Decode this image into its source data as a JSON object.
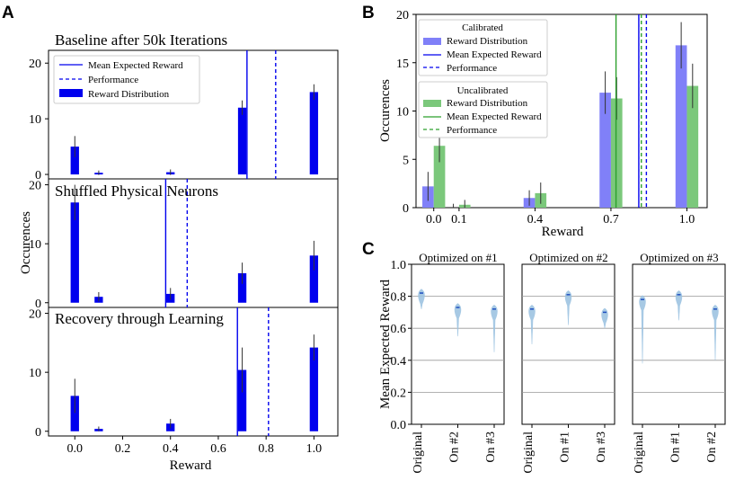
{
  "colors": {
    "blue": "#0000ee",
    "blue_light": "#8080f8",
    "green_light": "#7bc87b",
    "green": "#2ca02c",
    "violin": "#9ec4e2",
    "mean": "#1f4fbf"
  },
  "panels": {
    "A": "A",
    "B": "B",
    "C": "C"
  },
  "chart_data": [
    {
      "id": "A1",
      "type": "bar",
      "title": "Baseline after 50k Iterations",
      "x": [
        0.0,
        0.1,
        0.4,
        0.7,
        1.0
      ],
      "values": [
        5.0,
        0.3,
        0.4,
        12.0,
        14.8
      ],
      "errors": [
        1.9,
        0.4,
        0.5,
        1.3,
        1.4
      ],
      "mean_expected_reward": 0.72,
      "performance": 0.84,
      "xlim": [
        -0.11,
        1.1
      ],
      "ylim": [
        -0.8,
        22.3
      ],
      "yticks": [
        0,
        10,
        20
      ],
      "legend": [
        "Mean Expected Reward",
        "Performance",
        "Reward Distribution"
      ]
    },
    {
      "id": "A2",
      "type": "bar",
      "title": "Shuffled Physical Neurons",
      "x": [
        0.0,
        0.1,
        0.4,
        0.7,
        1.0
      ],
      "values": [
        17.0,
        1.0,
        1.5,
        5.0,
        8.0
      ],
      "errors": [
        3.0,
        0.8,
        1.0,
        1.8,
        2.5
      ],
      "mean_expected_reward": 0.38,
      "performance": 0.47,
      "xlim": [
        -0.11,
        1.1
      ],
      "ylim": [
        -0.8,
        21.0
      ],
      "yticks": [
        0,
        10,
        20
      ]
    },
    {
      "id": "A3",
      "type": "bar",
      "title": "Recovery through Learning",
      "x": [
        0.0,
        0.1,
        0.4,
        0.7,
        1.0
      ],
      "values": [
        6.0,
        0.4,
        1.3,
        10.4,
        14.2
      ],
      "errors": [
        2.9,
        0.4,
        0.8,
        3.8,
        2.2
      ],
      "mean_expected_reward": 0.68,
      "performance": 0.81,
      "xlim": [
        -0.11,
        1.1
      ],
      "ylim": [
        -0.8,
        21.0
      ],
      "yticks": [
        0,
        10,
        20
      ],
      "xticks": [
        "0.0",
        "0.2",
        "0.4",
        "0.6",
        "0.8",
        "1.0"
      ],
      "xlabel": "Reward"
    },
    {
      "id": "B",
      "type": "bar",
      "title": "",
      "categories": [
        "0.0",
        "0.1",
        "0.4",
        "0.7",
        "1.0"
      ],
      "x": [
        0.0,
        0.1,
        0.4,
        0.7,
        1.0
      ],
      "series": [
        {
          "name": "Calibrated",
          "label": "Reward Distribution",
          "values": [
            2.2,
            0.0,
            1.0,
            11.9,
            16.8
          ],
          "errors": [
            1.5,
            0.4,
            0.8,
            2.2,
            2.4
          ]
        },
        {
          "name": "Uncalibrated",
          "label": "Reward Distribution",
          "values": [
            6.4,
            0.3,
            1.5,
            11.3,
            12.6
          ],
          "errors": [
            1.7,
            0.5,
            1.1,
            2.2,
            2.3
          ]
        }
      ],
      "calibrated_mean": 0.81,
      "calibrated_performance": 0.84,
      "uncalibrated_mean": 0.72,
      "uncalibrated_performance": 0.82,
      "xlim": [
        -0.07,
        1.08
      ],
      "ylim": [
        0,
        20
      ],
      "yticks": [
        0,
        5,
        10,
        15,
        20
      ],
      "xlabel": "Reward",
      "ylabel": "Occurences",
      "legend_calibrated": {
        "title": "Calibrated",
        "items": [
          "Reward Distribution",
          "Mean Expected Reward",
          "Performance"
        ]
      },
      "legend_uncalibrated": {
        "title": "Uncalibrated",
        "items": [
          "Reward Distribution",
          "Mean Expected Reward",
          "Performance"
        ]
      }
    },
    {
      "id": "C",
      "type": "violin",
      "ylabel": "Mean Expected Reward",
      "ylim": [
        0.0,
        1.0
      ],
      "yticks": [
        "0.0",
        "0.2",
        "0.4",
        "0.6",
        "0.8",
        "1.0"
      ],
      "subplots": [
        {
          "title": "Optimized on #1",
          "categories": [
            "Original",
            "On #2",
            "On #3"
          ],
          "means": [
            0.82,
            0.73,
            0.72
          ],
          "mins": [
            0.72,
            0.55,
            0.45
          ]
        },
        {
          "title": "Optimized on #2",
          "categories": [
            "Original",
            "On #1",
            "On #3"
          ],
          "means": [
            0.72,
            0.81,
            0.7
          ],
          "mins": [
            0.5,
            0.62,
            0.6
          ]
        },
        {
          "title": "Optimized on #3",
          "categories": [
            "Original",
            "On #1",
            "On #2"
          ],
          "means": [
            0.78,
            0.81,
            0.72
          ],
          "mins": [
            0.38,
            0.65,
            0.4
          ]
        }
      ]
    }
  ],
  "axis_labels": {
    "A_y": "Occurences",
    "A_x": "Reward",
    "B_y": "Occurences",
    "B_x": "Reward",
    "C_y": "Mean Expected Reward"
  }
}
